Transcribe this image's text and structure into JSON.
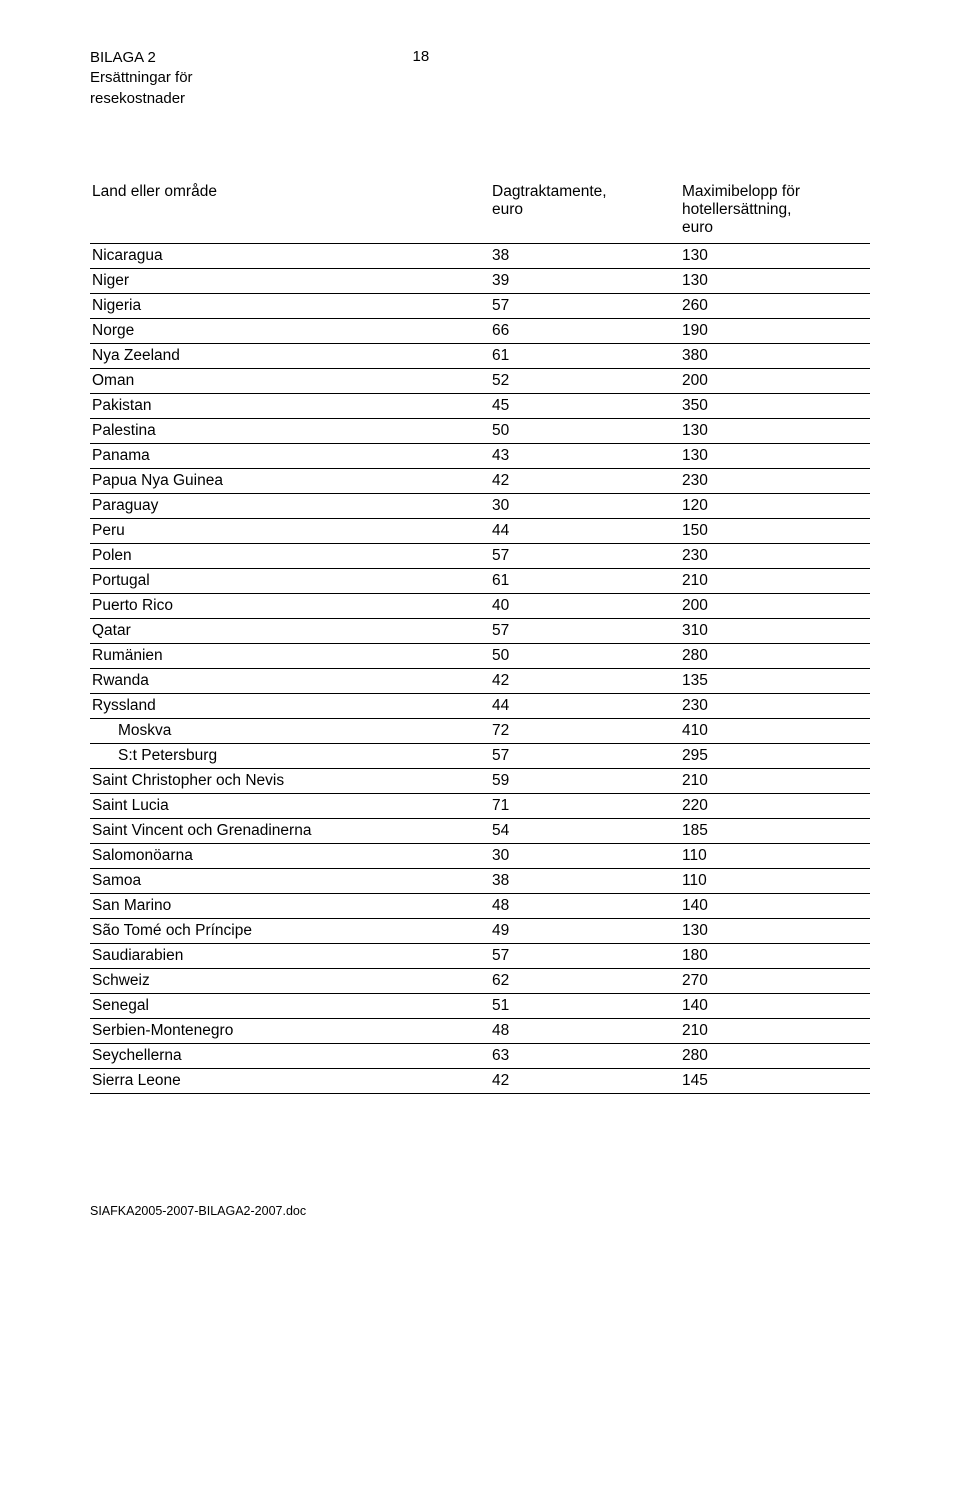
{
  "header": {
    "line1": "BILAGA 2",
    "line2": "Ersättningar för",
    "line3": "resekostnader",
    "page_number": "18"
  },
  "table": {
    "columns": [
      "Land eller område",
      "Dagtraktamente, euro",
      "Maximibelopp för hotellersättning, euro"
    ],
    "col_header_lines": {
      "col2": [
        "Dagtraktamente,",
        "euro"
      ],
      "col3": [
        "Maximibelopp för",
        "hotellersättning,",
        "euro"
      ]
    },
    "rows": [
      {
        "name": "Nicaragua",
        "v1": "38",
        "v2": "130"
      },
      {
        "name": "Niger",
        "v1": "39",
        "v2": "130"
      },
      {
        "name": "Nigeria",
        "v1": "57",
        "v2": "260"
      },
      {
        "name": "Norge",
        "v1": "66",
        "v2": "190"
      },
      {
        "name": "Nya Zeeland",
        "v1": "61",
        "v2": "380"
      },
      {
        "name": "Oman",
        "v1": "52",
        "v2": "200"
      },
      {
        "name": "Pakistan",
        "v1": "45",
        "v2": "350"
      },
      {
        "name": "Palestina",
        "v1": "50",
        "v2": "130"
      },
      {
        "name": "Panama",
        "v1": "43",
        "v2": "130"
      },
      {
        "name": "Papua Nya Guinea",
        "v1": "42",
        "v2": "230"
      },
      {
        "name": "Paraguay",
        "v1": "30",
        "v2": "120"
      },
      {
        "name": "Peru",
        "v1": "44",
        "v2": "150"
      },
      {
        "name": "Polen",
        "v1": "57",
        "v2": "230"
      },
      {
        "name": "Portugal",
        "v1": "61",
        "v2": "210"
      },
      {
        "name": "Puerto Rico",
        "v1": "40",
        "v2": "200"
      },
      {
        "name": "Qatar",
        "v1": "57",
        "v2": "310"
      },
      {
        "name": "Rumänien",
        "v1": "50",
        "v2": "280"
      },
      {
        "name": "Rwanda",
        "v1": "42",
        "v2": "135"
      },
      {
        "name": "Ryssland",
        "v1": "44",
        "v2": "230"
      },
      {
        "name": "Moskva",
        "v1": "72",
        "v2": "410",
        "indent": true
      },
      {
        "name": "S:t Petersburg",
        "v1": "57",
        "v2": "295",
        "indent": true
      },
      {
        "name": "Saint Christopher och Nevis",
        "v1": "59",
        "v2": "210"
      },
      {
        "name": "Saint Lucia",
        "v1": "71",
        "v2": "220"
      },
      {
        "name": "Saint Vincent och Grenadinerna",
        "v1": "54",
        "v2": "185"
      },
      {
        "name": "Salomonöarna",
        "v1": "30",
        "v2": "110"
      },
      {
        "name": "Samoa",
        "v1": "38",
        "v2": "110"
      },
      {
        "name": "San Marino",
        "v1": "48",
        "v2": "140"
      },
      {
        "name": "São Tomé och Príncipe",
        "v1": "49",
        "v2": "130"
      },
      {
        "name": "Saudiarabien",
        "v1": "57",
        "v2": "180"
      },
      {
        "name": "Schweiz",
        "v1": "62",
        "v2": "270"
      },
      {
        "name": "Senegal",
        "v1": "51",
        "v2": "140"
      },
      {
        "name": "Serbien-Montenegro",
        "v1": "48",
        "v2": "210"
      },
      {
        "name": "Seychellerna",
        "v1": "63",
        "v2": "280"
      },
      {
        "name": "Sierra Leone",
        "v1": "42",
        "v2": "145"
      }
    ]
  },
  "footer": {
    "text": "SIAFKA2005-2007-BILAGA2-2007.doc"
  }
}
